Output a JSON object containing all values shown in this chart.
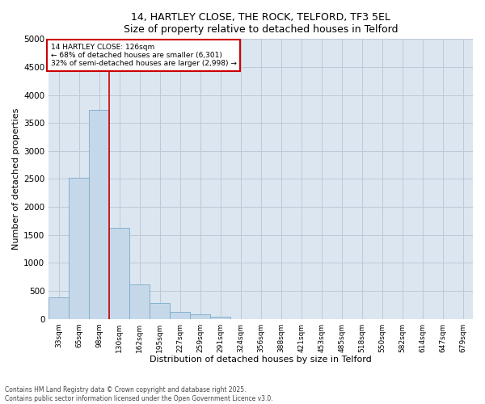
{
  "title_line1": "14, HARTLEY CLOSE, THE ROCK, TELFORD, TF3 5EL",
  "title_line2": "Size of property relative to detached houses in Telford",
  "xlabel": "Distribution of detached houses by size in Telford",
  "ylabel": "Number of detached properties",
  "categories": [
    "33sqm",
    "65sqm",
    "98sqm",
    "130sqm",
    "162sqm",
    "195sqm",
    "227sqm",
    "259sqm",
    "291sqm",
    "324sqm",
    "356sqm",
    "388sqm",
    "421sqm",
    "453sqm",
    "485sqm",
    "518sqm",
    "550sqm",
    "582sqm",
    "614sqm",
    "647sqm",
    "679sqm"
  ],
  "values": [
    380,
    2520,
    3730,
    1620,
    620,
    280,
    120,
    75,
    40,
    0,
    0,
    0,
    0,
    0,
    0,
    0,
    0,
    0,
    0,
    0,
    0
  ],
  "bar_color": "#c5d8ea",
  "bar_edge_color": "#7aaac8",
  "vline_x_index": 2.5,
  "vline_color": "#cc0000",
  "annotation_line1": "14 HARTLEY CLOSE: 126sqm",
  "annotation_line2": "← 68% of detached houses are smaller (6,301)",
  "annotation_line3": "32% of semi-detached houses are larger (2,998) →",
  "annotation_box_color": "white",
  "annotation_box_edge_color": "#cc0000",
  "ylim": [
    0,
    5000
  ],
  "yticks": [
    0,
    500,
    1000,
    1500,
    2000,
    2500,
    3000,
    3500,
    4000,
    4500,
    5000
  ],
  "grid_color": "#c0c8d8",
  "bg_color": "#dce6f0",
  "footer_line1": "Contains HM Land Registry data © Crown copyright and database right 2025.",
  "footer_line2": "Contains public sector information licensed under the Open Government Licence v3.0."
}
